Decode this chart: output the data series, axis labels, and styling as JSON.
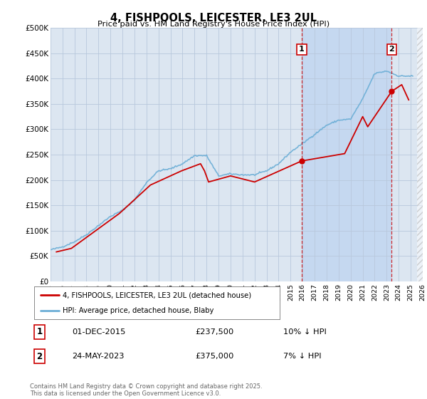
{
  "title": "4, FISHPOOLS, LEICESTER, LE3 2UL",
  "subtitle": "Price paid vs. HM Land Registry's House Price Index (HPI)",
  "ylabel_ticks": [
    "£0",
    "£50K",
    "£100K",
    "£150K",
    "£200K",
    "£250K",
    "£300K",
    "£350K",
    "£400K",
    "£450K",
    "£500K"
  ],
  "ytick_values": [
    0,
    50000,
    100000,
    150000,
    200000,
    250000,
    300000,
    350000,
    400000,
    450000,
    500000
  ],
  "ylim": [
    0,
    500000
  ],
  "xlim_start": 1995,
  "xlim_end": 2026,
  "plot_bg_color": "#dce6f1",
  "highlight_color": "#c5d8f0",
  "line_color_hpi": "#6baed6",
  "line_color_price": "#cc0000",
  "marker1_x": 2015.92,
  "marker1_y": 237500,
  "marker2_x": 2023.42,
  "marker2_y": 375000,
  "marker1_date": "01-DEC-2015",
  "marker1_price": "£237,500",
  "marker1_hpi": "10% ↓ HPI",
  "marker2_date": "24-MAY-2023",
  "marker2_price": "£375,000",
  "marker2_hpi": "7% ↓ HPI",
  "legend_label1": "4, FISHPOOLS, LEICESTER, LE3 2UL (detached house)",
  "legend_label2": "HPI: Average price, detached house, Blaby",
  "footnote": "Contains HM Land Registry data © Crown copyright and database right 2025.\nThis data is licensed under the Open Government Licence v3.0."
}
